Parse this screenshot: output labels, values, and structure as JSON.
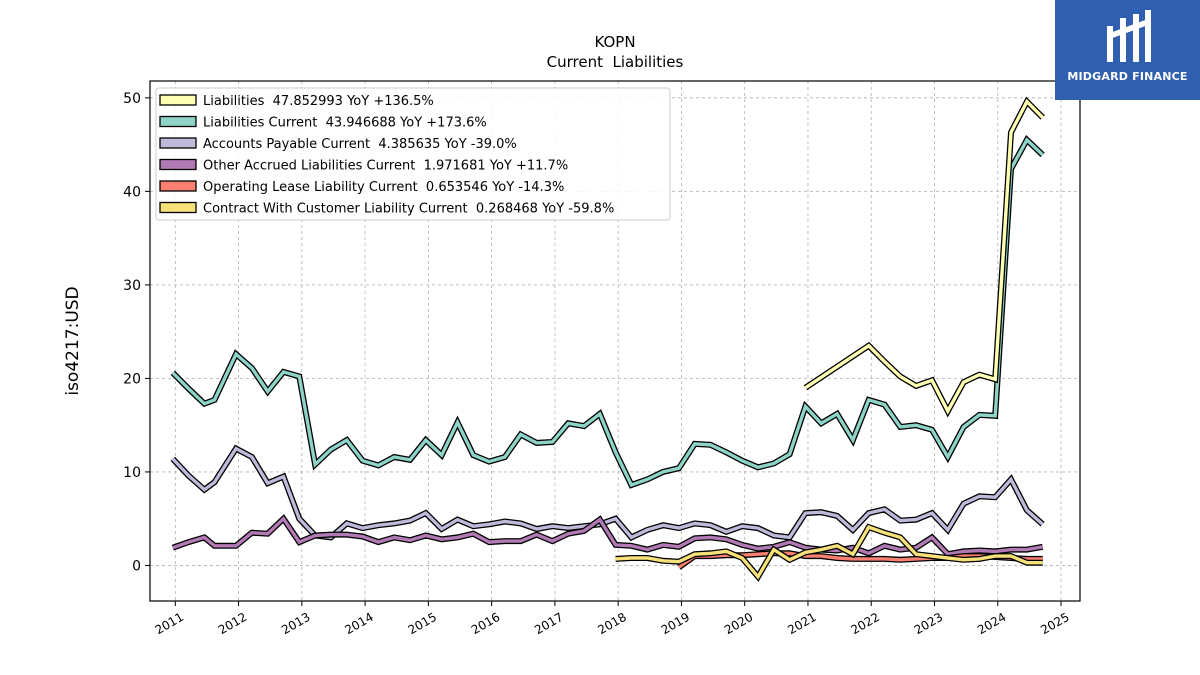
{
  "header": {
    "ticker": "KOPN",
    "subtitle": "Current  Liabilities"
  },
  "logo": {
    "text": "MIDGARD FINANCE",
    "bg": "#2f5fae"
  },
  "chart_data": {
    "type": "line",
    "title": "KOPN",
    "subtitle": "Current  Liabilities",
    "xlabel": "",
    "ylabel": "iso4217:USD",
    "xlim": [
      2010.6,
      2025.3
    ],
    "ylim": [
      -3.8,
      51.8
    ],
    "xticks": [
      2011,
      2012,
      2013,
      2014,
      2015,
      2016,
      2017,
      2018,
      2019,
      2020,
      2021,
      2022,
      2023,
      2024,
      2025
    ],
    "xtick_labels": [
      "2011",
      "2012",
      "2013",
      "2014",
      "2015",
      "2016",
      "2017",
      "2018",
      "2019",
      "2020",
      "2021",
      "2022",
      "2023",
      "2024",
      "2025"
    ],
    "yticks": [
      0,
      10,
      20,
      30,
      40,
      50
    ],
    "ytick_labels": [
      "0",
      "10",
      "20",
      "30",
      "40",
      "50"
    ],
    "grid": true,
    "legend_position": "top-left",
    "series": [
      {
        "name": "Accounts Payable Current",
        "legend": "Accounts Payable Current  4.385635 YoY -39.0%",
        "color": "#bebada",
        "x": [
          2010.96,
          2011.21,
          2011.46,
          2011.62,
          2011.96,
          2012.21,
          2012.46,
          2012.71,
          2012.96,
          2013.21,
          2013.46,
          2013.71,
          2013.96,
          2014.21,
          2014.46,
          2014.71,
          2014.96,
          2015.21,
          2015.46,
          2015.71,
          2015.96,
          2016.21,
          2016.46,
          2016.71,
          2016.96,
          2017.21,
          2017.46,
          2017.71,
          2017.96,
          2018.21,
          2018.46,
          2018.71,
          2018.96,
          2019.21,
          2019.46,
          2019.71,
          2019.96,
          2020.21,
          2020.46,
          2020.71,
          2020.96,
          2021.21,
          2021.46,
          2021.71,
          2021.96,
          2022.21,
          2022.46,
          2022.71,
          2022.96,
          2023.21,
          2023.46,
          2023.71,
          2023.96,
          2024.21,
          2024.46,
          2024.71
        ],
        "values": [
          11.4,
          9.6,
          8.1,
          8.9,
          12.5,
          11.6,
          8.8,
          9.5,
          5.0,
          3.2,
          3.0,
          4.5,
          4.0,
          4.3,
          4.5,
          4.8,
          5.6,
          3.9,
          4.9,
          4.2,
          4.4,
          4.7,
          4.5,
          3.9,
          4.2,
          4.0,
          4.2,
          4.4,
          5.0,
          3.0,
          3.8,
          4.3,
          4.0,
          4.5,
          4.3,
          3.6,
          4.2,
          4.0,
          3.2,
          3.0,
          5.6,
          5.7,
          5.3,
          3.8,
          5.6,
          6.0,
          4.8,
          4.9,
          5.6,
          3.8,
          6.6,
          7.4,
          7.3,
          9.2,
          5.9,
          4.4
        ]
      },
      {
        "name": "Liabilities Current",
        "legend": "Liabilities Current  43.946688 YoY +173.6%",
        "color": "#8dd3c7",
        "x": [
          2010.96,
          2011.21,
          2011.46,
          2011.62,
          2011.96,
          2012.21,
          2012.46,
          2012.71,
          2012.96,
          2013.21,
          2013.46,
          2013.71,
          2013.96,
          2014.21,
          2014.46,
          2014.71,
          2014.96,
          2015.21,
          2015.46,
          2015.71,
          2015.96,
          2016.21,
          2016.46,
          2016.71,
          2016.96,
          2017.21,
          2017.46,
          2017.71,
          2017.96,
          2018.21,
          2018.46,
          2018.71,
          2018.96,
          2019.21,
          2019.46,
          2019.71,
          2019.96,
          2020.21,
          2020.46,
          2020.71,
          2020.96,
          2021.21,
          2021.46,
          2021.71,
          2021.96,
          2022.21,
          2022.46,
          2022.71,
          2022.96,
          2023.21,
          2023.46,
          2023.71,
          2023.96,
          2024.21,
          2024.46,
          2024.71
        ],
        "values": [
          20.6,
          18.9,
          17.3,
          17.7,
          22.6,
          21.1,
          18.6,
          20.7,
          20.2,
          10.8,
          12.4,
          13.4,
          11.2,
          10.7,
          11.6,
          11.3,
          13.4,
          11.8,
          15.3,
          11.8,
          11.1,
          11.6,
          14.0,
          13.1,
          13.2,
          15.2,
          14.9,
          16.2,
          12.1,
          8.6,
          9.2,
          10.0,
          10.4,
          13.0,
          12.9,
          12.1,
          11.2,
          10.5,
          10.9,
          11.9,
          17.0,
          15.2,
          16.2,
          13.4,
          17.7,
          17.2,
          14.8,
          15.0,
          14.5,
          11.6,
          14.8,
          16.1,
          16.0,
          42.4,
          45.5,
          43.9
        ]
      },
      {
        "name": "Liabilities",
        "legend": "Liabilities  47.852993 YoY +136.5%",
        "color": "#ffffb3",
        "x": [
          2020.96,
          2021.96,
          2022.21,
          2022.46,
          2022.71,
          2022.96,
          2023.21,
          2023.46,
          2023.71,
          2023.96,
          2024.21,
          2024.46,
          2024.71
        ],
        "values": [
          19.0,
          23.5,
          21.8,
          20.2,
          19.2,
          19.8,
          16.5,
          19.6,
          20.4,
          19.9,
          46.3,
          49.6,
          47.9
        ]
      },
      {
        "name": "Other Accrued Liabilities Current",
        "legend": "Other Accrued Liabilities Current  1.971681 YoY +11.7%",
        "color": "#b27ab4",
        "x": [
          2010.96,
          2011.21,
          2011.46,
          2011.62,
          2011.96,
          2012.21,
          2012.46,
          2012.71,
          2012.96,
          2013.21,
          2013.46,
          2013.71,
          2013.96,
          2014.21,
          2014.46,
          2014.71,
          2014.96,
          2015.21,
          2015.46,
          2015.71,
          2015.96,
          2016.21,
          2016.46,
          2016.71,
          2016.96,
          2017.21,
          2017.46,
          2017.71,
          2017.96,
          2018.21,
          2018.46,
          2018.71,
          2018.96,
          2019.21,
          2019.46,
          2019.71,
          2019.96,
          2020.21,
          2020.46,
          2020.71,
          2020.96,
          2021.21,
          2021.46,
          2021.71,
          2021.96,
          2022.21,
          2022.46,
          2022.71,
          2022.96,
          2023.21,
          2023.46,
          2023.71,
          2023.96,
          2024.21,
          2024.46,
          2024.71
        ],
        "values": [
          1.9,
          2.5,
          3.0,
          2.1,
          2.1,
          3.5,
          3.4,
          5.0,
          2.5,
          3.2,
          3.3,
          3.3,
          3.1,
          2.5,
          3.0,
          2.7,
          3.2,
          2.8,
          3.0,
          3.4,
          2.5,
          2.6,
          2.6,
          3.3,
          2.6,
          3.4,
          3.7,
          4.9,
          2.2,
          2.1,
          1.7,
          2.2,
          2.0,
          2.9,
          3.0,
          2.8,
          2.2,
          1.8,
          2.0,
          2.5,
          1.9,
          1.7,
          1.6,
          1.9,
          1.3,
          2.1,
          1.7,
          1.9,
          3.0,
          1.2,
          1.5,
          1.6,
          1.5,
          1.7,
          1.7,
          2.0
        ]
      },
      {
        "name": "Operating Lease Liability Current",
        "legend": "Operating Lease Liability Current  0.653546 YoY -14.3%",
        "color": "#fb8072",
        "x": [
          2018.96,
          2019.21,
          2019.46,
          2019.71,
          2019.96,
          2020.21,
          2020.46,
          2020.71,
          2020.96,
          2021.21,
          2021.46,
          2021.71,
          2021.96,
          2022.21,
          2022.46,
          2022.71,
          2022.96,
          2023.21,
          2023.46,
          2023.71,
          2023.96,
          2024.21,
          2024.46,
          2024.71
        ],
        "values": [
          -0.2,
          1.0,
          1.0,
          1.1,
          1.1,
          1.2,
          1.3,
          1.3,
          1.0,
          1.0,
          0.8,
          0.7,
          0.7,
          0.7,
          0.6,
          0.7,
          0.8,
          0.8,
          1.0,
          1.0,
          0.9,
          0.8,
          0.7,
          0.7
        ]
      },
      {
        "name": "Contract With Customer Liability Current",
        "legend": "Contract With Customer Liability Current  0.268468 YoY -59.8%",
        "color": "#f7e27a",
        "x": [
          2017.96,
          2018.21,
          2018.46,
          2018.71,
          2018.96,
          2019.21,
          2019.46,
          2019.71,
          2019.96,
          2020.21,
          2020.46,
          2020.71,
          2020.96,
          2021.21,
          2021.46,
          2021.71,
          2021.96,
          2022.21,
          2022.46,
          2022.71,
          2022.96,
          2023.21,
          2023.46,
          2023.71,
          2023.96,
          2024.21,
          2024.46,
          2024.71
        ],
        "values": [
          0.7,
          0.8,
          0.8,
          0.5,
          0.4,
          1.2,
          1.3,
          1.5,
          0.8,
          -1.2,
          1.7,
          0.6,
          1.4,
          1.7,
          2.1,
          1.2,
          4.1,
          3.5,
          3.0,
          1.2,
          1.0,
          0.8,
          0.6,
          0.7,
          1.0,
          1.0,
          0.3,
          0.3
        ]
      }
    ],
    "legend_order": [
      "Liabilities",
      "Liabilities Current",
      "Accounts Payable Current",
      "Other Accrued Liabilities Current",
      "Operating Lease Liability Current",
      "Contract With Customer Liability Current"
    ]
  }
}
